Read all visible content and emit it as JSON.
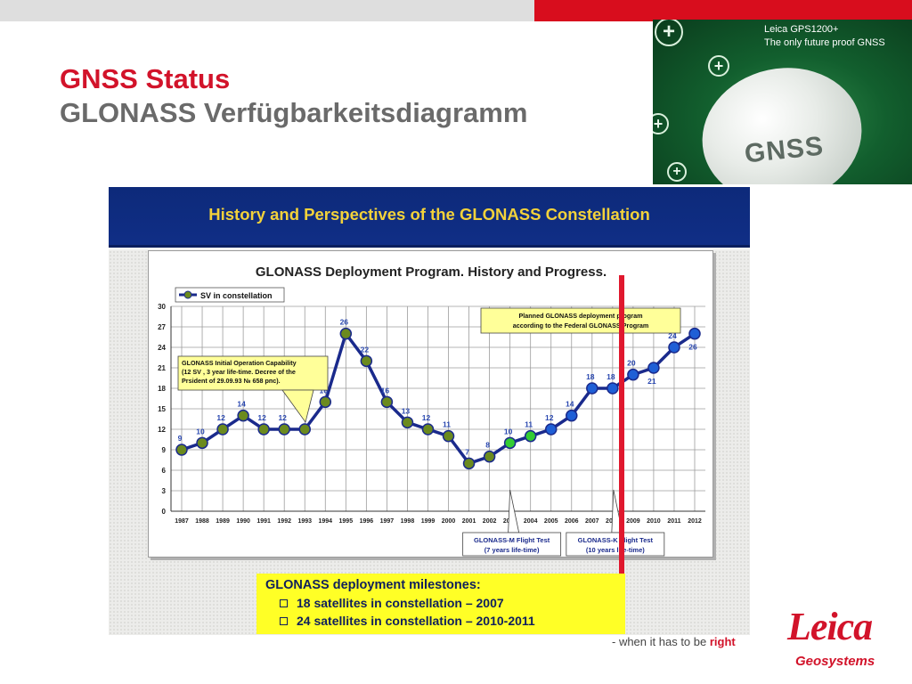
{
  "slide": {
    "title_line1": "GNSS Status",
    "title_line2": "GLONASS Verfügbarkeitsdiagramm",
    "tagline_prefix": "- when it has to be ",
    "tagline_highlight": "right",
    "logo_text": "Leica",
    "logo_sub": "Geosystems",
    "accent_red": "#d80d1d"
  },
  "banner": {
    "line1": "Leica GPS1200+",
    "line2": "The only future proof GNSS",
    "disc_text": "GNSS"
  },
  "figure": {
    "header": "History and Perspectives of the GLONASS Constellation"
  },
  "chart_data": {
    "type": "line",
    "title": "GLONASS Deployment Program. History and Progress.",
    "x": [
      "1987",
      "1988",
      "1989",
      "1990",
      "1991",
      "1992",
      "1993",
      "1994",
      "1995",
      "1996",
      "1997",
      "1998",
      "1999",
      "2000",
      "2001",
      "2002",
      "2003",
      "2004",
      "2005",
      "2006",
      "2007",
      "2008",
      "2009",
      "2010",
      "2011",
      "2012"
    ],
    "series": [
      {
        "name": "SV in constellation",
        "values": [
          9,
          10,
          12,
          14,
          12,
          12,
          12,
          16,
          26,
          22,
          16,
          13,
          12,
          11,
          7,
          8,
          10,
          11,
          12,
          14,
          18,
          18,
          20,
          21,
          24,
          26
        ],
        "labels": [
          "9",
          "10",
          "12",
          "14",
          "12",
          "12",
          "",
          "16",
          "26",
          "22",
          "16",
          "13",
          "12",
          "11",
          "7",
          "8",
          "10",
          "11",
          "12",
          "14",
          "18",
          "18",
          "20",
          "21",
          "24",
          "26"
        ],
        "marker_colors": [
          "#6b8a1e",
          "#6b8a1e",
          "#6b8a1e",
          "#6b8a1e",
          "#6b8a1e",
          "#6b8a1e",
          "#6b8a1e",
          "#6b8a1e",
          "#6b8a1e",
          "#6b8a1e",
          "#6b8a1e",
          "#6b8a1e",
          "#6b8a1e",
          "#6b8a1e",
          "#6b8a1e",
          "#6b8a1e",
          "#33cc33",
          "#33cc33",
          "#1f5fd6",
          "#1f5fd6",
          "#1f5fd6",
          "#1f5fd6",
          "#1f5fd6",
          "#1f5fd6",
          "#1f5fd6",
          "#1f5fd6"
        ],
        "line_color": "#1a2a8c"
      }
    ],
    "ylim": [
      0,
      30
    ],
    "yticks": [
      0,
      3,
      6,
      9,
      12,
      15,
      18,
      21,
      24,
      27,
      30
    ],
    "grid": true,
    "legend": "top-left",
    "annotations": [
      "GLONASS Initial Operation Capability (12 SV , 3 year life-time. Decree of the Prsident of 29.09.93 № 658 рпс).",
      "Planned GLONASS deployment program according to the Federal GLONASS Program",
      "GLONASS-M Flight Test (7 years life-time)",
      "GLONASS-K Flight Test (10 years life-time)"
    ]
  },
  "milestones": {
    "title": "GLONASS deployment milestones:",
    "items": [
      "18 satellites in constellation – 2007",
      "24 satellites in constellation – 2010-2011"
    ]
  }
}
